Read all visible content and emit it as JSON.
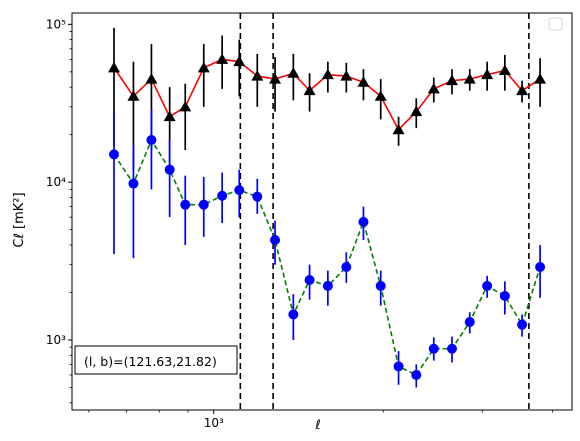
{
  "chart_data": {
    "type": "scatter",
    "xscale": "log",
    "yscale": "log",
    "xlim": [
      560,
      4330
    ],
    "ylim": [
      360,
      118000
    ],
    "xlabel": "ℓ",
    "ylabel": "Cℓ  [mK²]",
    "x_ticks": [
      {
        "value": 1000,
        "label": "10³"
      }
    ],
    "y_ticks": [
      {
        "value": 1000,
        "label": "10³"
      },
      {
        "value": 10000,
        "label": "10⁴"
      },
      {
        "value": 100000,
        "label": "10⁵"
      }
    ],
    "annotation": "(l, b)=(121.63,21.82)",
    "legend": "top-right",
    "legend_entries": [],
    "vlines": [
      1115,
      1275,
      3630
    ],
    "series": [
      {
        "marker": "triangle",
        "marker_color": "#000000",
        "errorbar_color": "#000000",
        "line_color": "#ff0000",
        "line_style": "solid",
        "points": [
          {
            "x": 665,
            "y": 53000,
            "lo": 17000,
            "hi": 95000
          },
          {
            "x": 720,
            "y": 35000,
            "lo": 12000,
            "hi": 58000
          },
          {
            "x": 775,
            "y": 45000,
            "lo": 16000,
            "hi": 75000
          },
          {
            "x": 835,
            "y": 26000,
            "lo": 12000,
            "hi": 40000
          },
          {
            "x": 890,
            "y": 30000,
            "lo": 16000,
            "hi": 42000
          },
          {
            "x": 960,
            "y": 53000,
            "lo": 30000,
            "hi": 75000
          },
          {
            "x": 1035,
            "y": 60000,
            "lo": 39000,
            "hi": 85000
          },
          {
            "x": 1110,
            "y": 58000,
            "lo": 35000,
            "hi": 80000
          },
          {
            "x": 1195,
            "y": 47000,
            "lo": 30000,
            "hi": 65000
          },
          {
            "x": 1285,
            "y": 45000,
            "lo": 28000,
            "hi": 62000
          },
          {
            "x": 1385,
            "y": 49000,
            "lo": 33000,
            "hi": 65000
          },
          {
            "x": 1480,
            "y": 38000,
            "lo": 28000,
            "hi": 49000
          },
          {
            "x": 1595,
            "y": 48000,
            "lo": 37000,
            "hi": 58000
          },
          {
            "x": 1720,
            "y": 47000,
            "lo": 37000,
            "hi": 57000
          },
          {
            "x": 1845,
            "y": 43000,
            "lo": 33000,
            "hi": 52000
          },
          {
            "x": 1980,
            "y": 35000,
            "lo": 25000,
            "hi": 45000
          },
          {
            "x": 2130,
            "y": 21500,
            "lo": 17000,
            "hi": 26000
          },
          {
            "x": 2290,
            "y": 28000,
            "lo": 22000,
            "hi": 34000
          },
          {
            "x": 2460,
            "y": 39000,
            "lo": 32000,
            "hi": 46000
          },
          {
            "x": 2650,
            "y": 44000,
            "lo": 36000,
            "hi": 52000
          },
          {
            "x": 2850,
            "y": 45000,
            "lo": 38000,
            "hi": 52000
          },
          {
            "x": 3060,
            "y": 48000,
            "lo": 38000,
            "hi": 58000
          },
          {
            "x": 3290,
            "y": 51000,
            "lo": 38000,
            "hi": 64000
          },
          {
            "x": 3530,
            "y": 38000,
            "lo": 32000,
            "hi": 44000
          },
          {
            "x": 3800,
            "y": 45000,
            "lo": 30000,
            "hi": 61000
          }
        ]
      },
      {
        "marker": "circle",
        "marker_color": "#0000ff",
        "errorbar_color": "#0000ff",
        "line_color": "#008000",
        "line_style": "dashed",
        "points": [
          {
            "x": 665,
            "y": 15000,
            "lo": 3500,
            "hi": 28000
          },
          {
            "x": 720,
            "y": 9800,
            "lo": 3300,
            "hi": 17000
          },
          {
            "x": 775,
            "y": 18500,
            "lo": 9000,
            "hi": 29000
          },
          {
            "x": 835,
            "y": 12000,
            "lo": 6000,
            "hi": 18500
          },
          {
            "x": 890,
            "y": 7200,
            "lo": 4000,
            "hi": 11000
          },
          {
            "x": 960,
            "y": 7200,
            "lo": 4500,
            "hi": 10800
          },
          {
            "x": 1035,
            "y": 8200,
            "lo": 5500,
            "hi": 11500
          },
          {
            "x": 1110,
            "y": 8900,
            "lo": 6000,
            "hi": 12000
          },
          {
            "x": 1195,
            "y": 8100,
            "lo": 6300,
            "hi": 10500
          },
          {
            "x": 1285,
            "y": 4300,
            "lo": 3000,
            "hi": 5700
          },
          {
            "x": 1385,
            "y": 1450,
            "lo": 1000,
            "hi": 1950
          },
          {
            "x": 1480,
            "y": 2400,
            "lo": 1800,
            "hi": 3000
          },
          {
            "x": 1595,
            "y": 2200,
            "lo": 1650,
            "hi": 2750
          },
          {
            "x": 1720,
            "y": 2900,
            "lo": 2300,
            "hi": 3600
          },
          {
            "x": 1845,
            "y": 5600,
            "lo": 4300,
            "hi": 7000
          },
          {
            "x": 1980,
            "y": 2200,
            "lo": 1650,
            "hi": 2750
          },
          {
            "x": 2130,
            "y": 680,
            "lo": 520,
            "hi": 850
          },
          {
            "x": 2290,
            "y": 600,
            "lo": 500,
            "hi": 700
          },
          {
            "x": 2460,
            "y": 880,
            "lo": 740,
            "hi": 1040
          },
          {
            "x": 2650,
            "y": 880,
            "lo": 720,
            "hi": 1050
          },
          {
            "x": 2850,
            "y": 1300,
            "lo": 1100,
            "hi": 1500
          },
          {
            "x": 3060,
            "y": 2200,
            "lo": 1850,
            "hi": 2550
          },
          {
            "x": 3290,
            "y": 1900,
            "lo": 1450,
            "hi": 2350
          },
          {
            "x": 3530,
            "y": 1250,
            "lo": 1050,
            "hi": 1450
          },
          {
            "x": 3800,
            "y": 2900,
            "lo": 1850,
            "hi": 4000
          }
        ]
      }
    ]
  }
}
